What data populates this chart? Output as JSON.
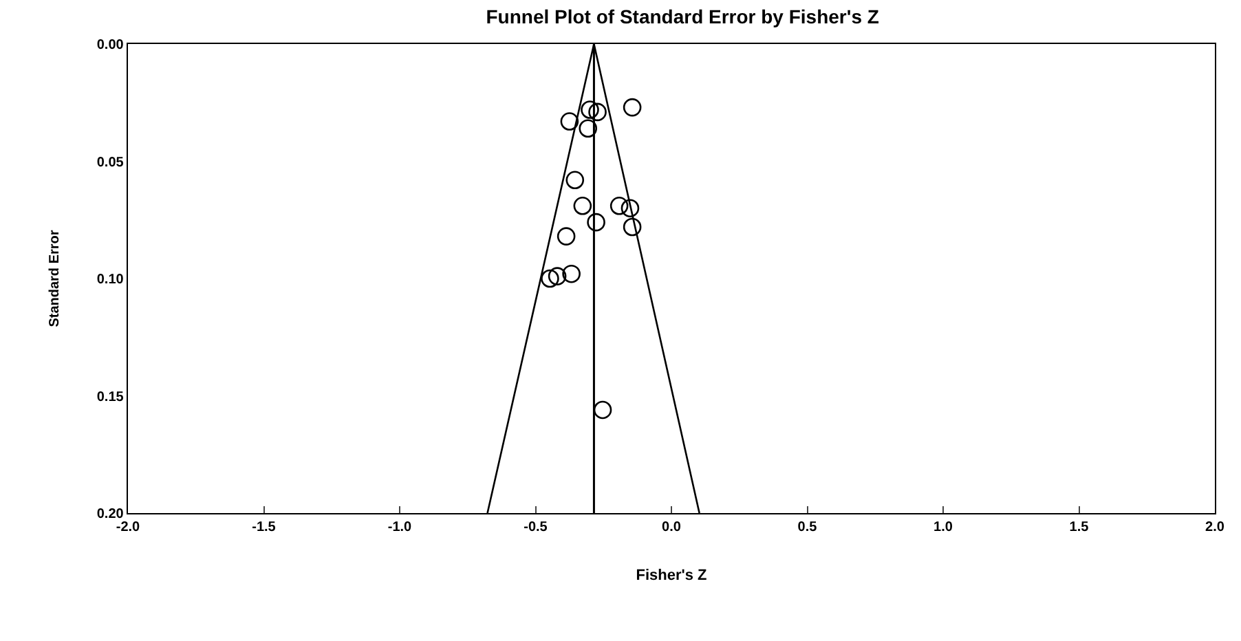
{
  "chart_data": {
    "type": "scatter",
    "title": "Funnel Plot of Standard Error by Fisher's Z",
    "xlabel": "Fisher's Z",
    "ylabel": "Standard Error",
    "x": [
      -0.3,
      -0.272,
      -0.144,
      -0.375,
      -0.307,
      -0.355,
      -0.327,
      -0.192,
      -0.152,
      -0.277,
      -0.144,
      -0.387,
      -0.368,
      -0.42,
      -0.447,
      -0.253
    ],
    "series": [
      {
        "color": "#000000",
        "marker": "circle",
        "values": [
          0.028,
          0.029,
          0.027,
          0.033,
          0.036,
          0.058,
          0.069,
          0.069,
          0.07,
          0.076,
          0.078,
          0.082,
          0.098,
          0.099,
          0.1,
          0.156
        ]
      },
      {
        "type": "line",
        "color": "#000000",
        "marker": "none",
        "x": [
          -0.677,
          -0.285,
          0.103
        ],
        "values": [
          0.2,
          0.0,
          0.2
        ]
      }
    ],
    "ref_lines": [
      {
        "axis": "x",
        "value": -0.285,
        "color": "#000000"
      }
    ],
    "xlim": [
      -2.0,
      2.0
    ],
    "xticks": [
      {
        "value": -2.0,
        "label": "-2.0"
      },
      {
        "value": -1.5,
        "label": "-1.5"
      },
      {
        "value": -1.0,
        "label": "-1.0"
      },
      {
        "value": -0.5,
        "label": "-0.5"
      },
      {
        "value": 0.0,
        "label": "0.0"
      },
      {
        "value": 0.5,
        "label": "0.5"
      },
      {
        "value": 1.0,
        "label": "1.0"
      },
      {
        "value": 1.5,
        "label": "1.5"
      },
      {
        "value": 2.0,
        "label": "2.0"
      }
    ],
    "ylim": [
      0.2,
      0.0
    ],
    "yticks": [
      {
        "value": 0.0,
        "label": "0.00"
      },
      {
        "value": 0.05,
        "label": "0.05"
      },
      {
        "value": 0.1,
        "label": "0.10"
      },
      {
        "value": 0.15,
        "label": "0.15"
      },
      {
        "value": 0.2,
        "label": "0.20"
      }
    ],
    "line_style": "solid"
  }
}
